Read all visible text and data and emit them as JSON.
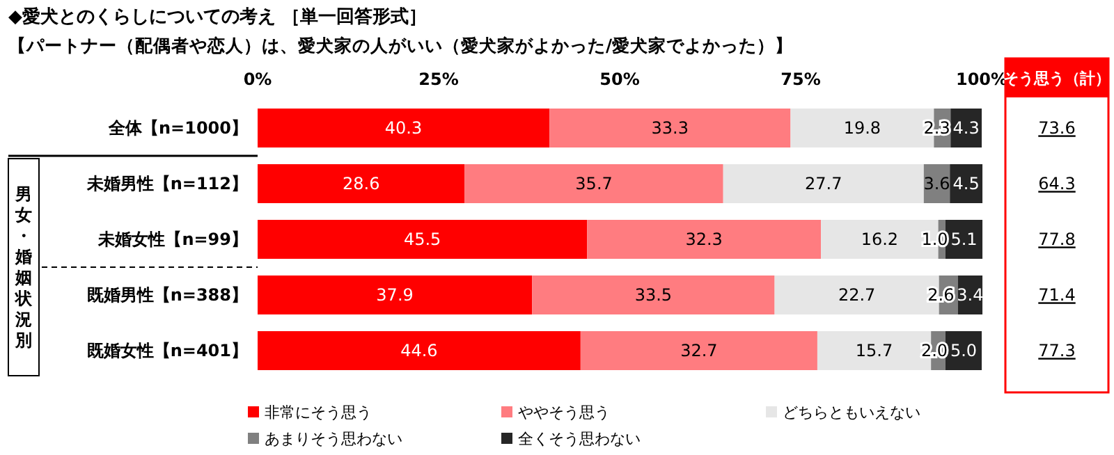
{
  "chart_data": {
    "type": "bar",
    "orientation": "horizontal",
    "stacked": true,
    "title": "◆愛犬とのくらしについての考え ［単一回答形式］",
    "subtitle": "【パートナー（配偶者や恋人）は、愛犬家の人がいい（愛犬家がよかった/愛犬家でよかった）】",
    "categories": [
      "全体【n=1000】",
      "未婚男性【n=112】",
      "未婚女性【n=99】",
      "既婚男性【n=388】",
      "既婚女性【n=401】"
    ],
    "series": [
      {
        "name": "非常にそう思う",
        "color": "#ff0000",
        "values": [
          40.3,
          28.6,
          45.5,
          37.9,
          44.6
        ],
        "value_labels": [
          "40.3",
          "28.6",
          "45.5",
          "37.9",
          "44.6"
        ]
      },
      {
        "name": "ややそう思う",
        "color": "#ff7c80",
        "values": [
          33.3,
          35.7,
          32.3,
          33.5,
          32.7
        ],
        "value_labels": [
          "33.3",
          "35.7",
          "32.3",
          "33.5",
          "32.7"
        ]
      },
      {
        "name": "どちらともいえない",
        "color": "#e6e6e6",
        "values": [
          19.8,
          27.7,
          16.2,
          22.7,
          15.7
        ],
        "value_labels": [
          "19.8",
          "27.7",
          "16.2",
          "22.7",
          "15.7"
        ]
      },
      {
        "name": "あまりそう思わない",
        "color": "#808080",
        "values": [
          2.3,
          3.6,
          1.0,
          2.6,
          2.0
        ],
        "value_labels": [
          "2.3",
          "3.6",
          "1.0",
          "2.6",
          "2.0"
        ]
      },
      {
        "name": "全くそう思わない",
        "color": "#262626",
        "values": [
          4.3,
          4.5,
          5.1,
          3.4,
          5.0
        ],
        "value_labels": [
          "4.3",
          "4.5",
          "5.1",
          "3.4",
          "5.0"
        ]
      }
    ],
    "xlim": [
      0,
      100
    ],
    "xticks": [
      {
        "value": 0,
        "label": "0%"
      },
      {
        "value": 25,
        "label": "25%"
      },
      {
        "value": 50,
        "label": "50%"
      },
      {
        "value": 75,
        "label": "75%"
      },
      {
        "value": 100,
        "label": "100%"
      }
    ],
    "annotations": [
      "そう思う（計）",
      "男女・婚姻状況別",
      "73.6",
      "64.3",
      "77.8",
      "71.4",
      "77.3"
    ],
    "legend": "bottom"
  }
}
